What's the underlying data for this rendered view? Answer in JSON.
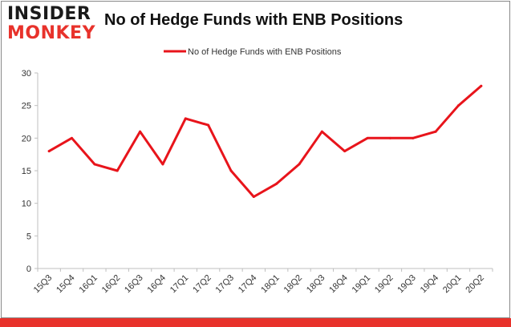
{
  "logo": {
    "line1": "INSIDER",
    "line2": "MONKEY"
  },
  "chart_data": {
    "type": "line",
    "title": "No of Hedge Funds with ENB Positions",
    "categories": [
      "15Q3",
      "15Q4",
      "16Q1",
      "16Q2",
      "16Q3",
      "16Q4",
      "17Q1",
      "17Q2",
      "17Q3",
      "17Q4",
      "18Q1",
      "18Q2",
      "18Q3",
      "18Q4",
      "19Q1",
      "19Q2",
      "19Q3",
      "19Q4",
      "20Q1",
      "20Q2"
    ],
    "series": [
      {
        "name": "No of Hedge Funds with ENB Positions",
        "values": [
          18,
          20,
          16,
          15,
          21,
          16,
          23,
          22,
          15,
          11,
          13,
          16,
          21,
          18,
          20,
          20,
          20,
          21,
          25,
          28
        ]
      }
    ],
    "ylim": [
      0,
      30
    ],
    "yticks": [
      0,
      5,
      10,
      15,
      20,
      25,
      30
    ],
    "grid": false,
    "legend": "top-center",
    "colors": {
      "line": "#e8141b",
      "axis": "#bfbfbf",
      "frame": "#888888",
      "accent": "#e8322b"
    }
  }
}
